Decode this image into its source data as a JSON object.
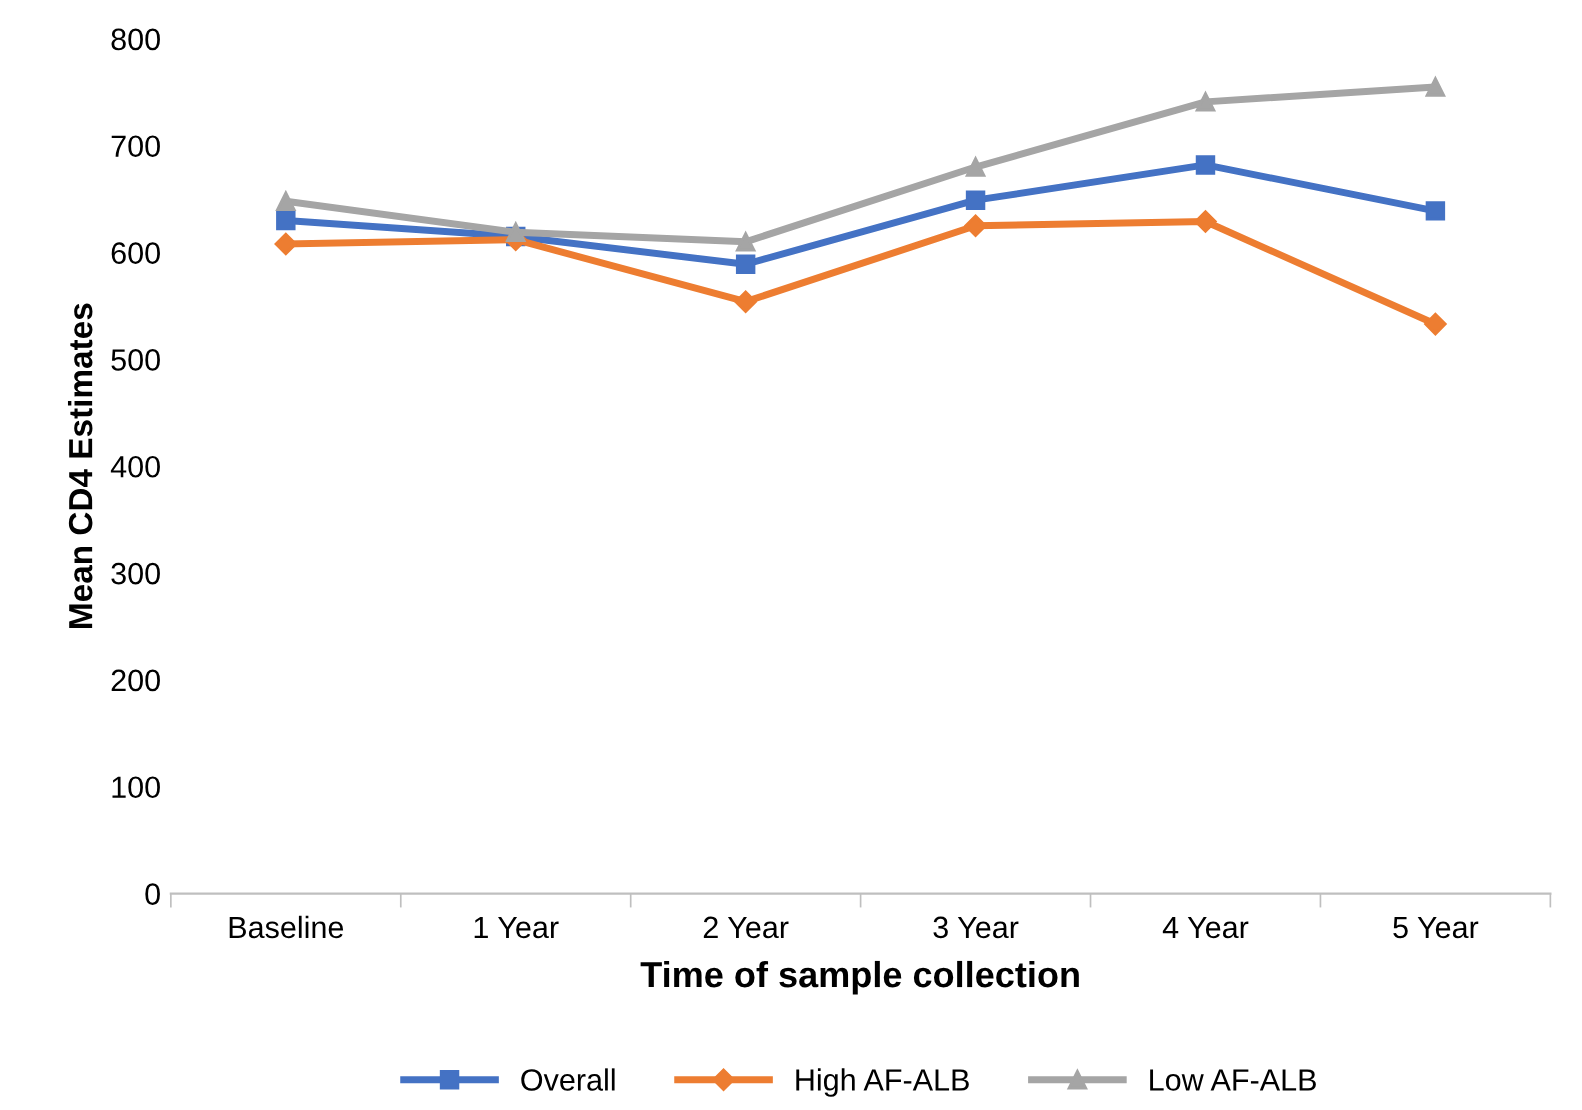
{
  "chart_data": {
    "type": "line",
    "xlabel": "Time of sample collection",
    "ylabel": "Mean CD4 Estimates",
    "categories": [
      "Baseline",
      "1 Year",
      "2 Year",
      "3 Year",
      "4 Year",
      "5 Year"
    ],
    "series": [
      {
        "name": "Overall",
        "color": "#4472c4",
        "marker": "square",
        "values": [
          630,
          615,
          589,
          649,
          682,
          639
        ]
      },
      {
        "name": "High AF-ALB",
        "color": "#ed7d31",
        "marker": "diamond",
        "values": [
          608,
          612,
          554,
          625,
          629,
          533
        ]
      },
      {
        "name": "Low AF-ALB",
        "color": "#a5a5a5",
        "marker": "triangle",
        "values": [
          648,
          619,
          610,
          680,
          741,
          755
        ]
      }
    ],
    "ylim": [
      0,
      800
    ],
    "yticks": [
      0,
      100,
      200,
      300,
      400,
      500,
      600,
      700,
      800
    ],
    "grid": false,
    "legend": "bottom",
    "line_style": "solid"
  }
}
